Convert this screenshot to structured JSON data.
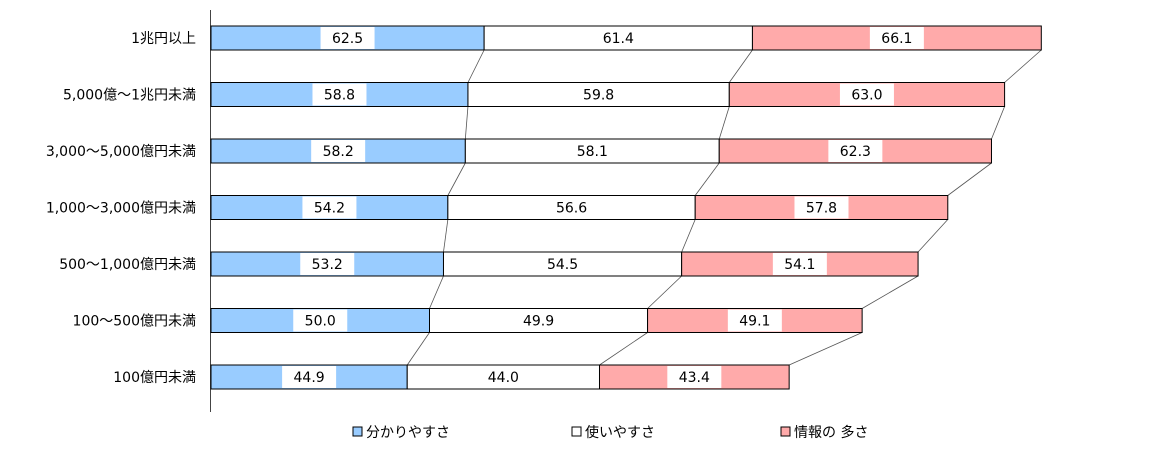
{
  "chart_data": {
    "type": "bar",
    "orientation": "horizontal",
    "stacked": true,
    "categories": [
      "1兆円以上",
      "5,000億～1兆円未満",
      "3,000～5,000億円未満",
      "1,000～3,000億円未満",
      "500～1,000億円未満",
      "100～500億円未満",
      "100億円未満"
    ],
    "series": [
      {
        "name": "分かりやすさ",
        "color": "#99ccff",
        "values": [
          62.5,
          58.8,
          58.2,
          54.2,
          53.2,
          50.0,
          44.9
        ]
      },
      {
        "name": "使いやすさ",
        "color": "#ffffff",
        "values": [
          61.4,
          59.8,
          58.1,
          56.6,
          54.5,
          49.9,
          44.0
        ]
      },
      {
        "name": "情報の 多さ",
        "color": "#ffaaaa",
        "values": [
          66.1,
          63.0,
          62.3,
          57.8,
          54.1,
          49.1,
          43.4
        ]
      }
    ],
    "series_lines": true,
    "legend_position": "bottom",
    "grid": false,
    "title": "",
    "xlabel": "",
    "ylabel": ""
  }
}
